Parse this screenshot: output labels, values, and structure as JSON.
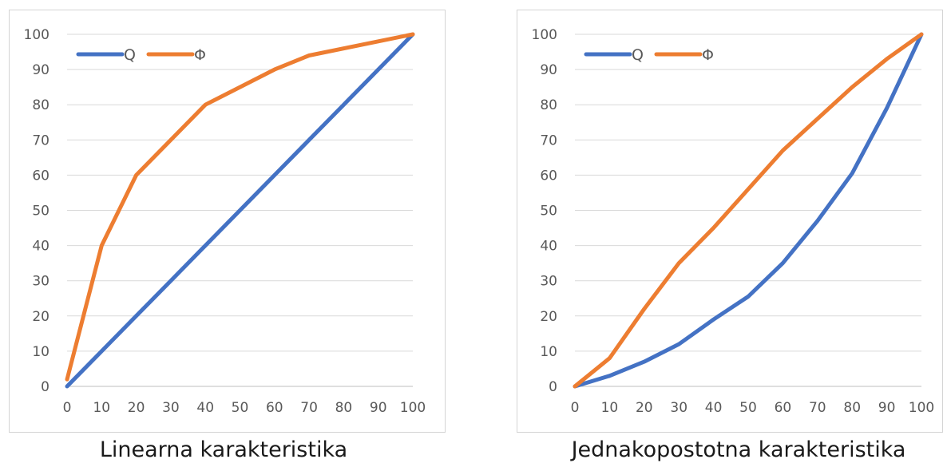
{
  "chart_data": [
    {
      "type": "line",
      "title": "",
      "caption": "Linearna karakteristika",
      "xlabel": "",
      "ylabel": "",
      "xlim": [
        0,
        100
      ],
      "ylim": [
        0,
        100
      ],
      "xticks": [
        0,
        10,
        20,
        30,
        40,
        50,
        60,
        70,
        80,
        90,
        100
      ],
      "yticks": [
        0,
        10,
        20,
        30,
        40,
        50,
        60,
        70,
        80,
        90,
        100
      ],
      "grid": "horizontal",
      "legend": "top-left",
      "series": [
        {
          "name": "Q",
          "color": "#4472C4",
          "x": [
            0,
            10,
            20,
            30,
            40,
            50,
            60,
            70,
            80,
            90,
            100
          ],
          "y": [
            0,
            10,
            20,
            30,
            40,
            50,
            60,
            70,
            80,
            90,
            100
          ]
        },
        {
          "name": "Φ",
          "color": "#ED7D31",
          "x": [
            0,
            10,
            20,
            40,
            60,
            70,
            100
          ],
          "y": [
            2,
            40,
            60,
            80,
            90,
            94,
            100
          ]
        }
      ]
    },
    {
      "type": "line",
      "title": "",
      "caption": "Jednakopostotna karakteristika",
      "xlabel": "",
      "ylabel": "",
      "xlim": [
        0,
        100
      ],
      "ylim": [
        0,
        100
      ],
      "xticks": [
        0,
        10,
        20,
        30,
        40,
        50,
        60,
        70,
        80,
        90,
        100
      ],
      "yticks": [
        0,
        10,
        20,
        30,
        40,
        50,
        60,
        70,
        80,
        90,
        100
      ],
      "grid": "horizontal",
      "legend": "top-left",
      "series": [
        {
          "name": "Q",
          "color": "#4472C4",
          "x": [
            0,
            10,
            20,
            30,
            40,
            50,
            60,
            70,
            80,
            90,
            100
          ],
          "y": [
            0,
            3,
            7,
            12,
            19,
            25.5,
            35,
            47,
            60.5,
            79,
            100
          ]
        },
        {
          "name": "Φ",
          "color": "#ED7D31",
          "x": [
            0,
            10,
            20,
            30,
            40,
            50,
            60,
            70,
            80,
            90,
            100
          ],
          "y": [
            0,
            8,
            22,
            35,
            45,
            56,
            67,
            76,
            85,
            93,
            100
          ]
        }
      ]
    }
  ]
}
